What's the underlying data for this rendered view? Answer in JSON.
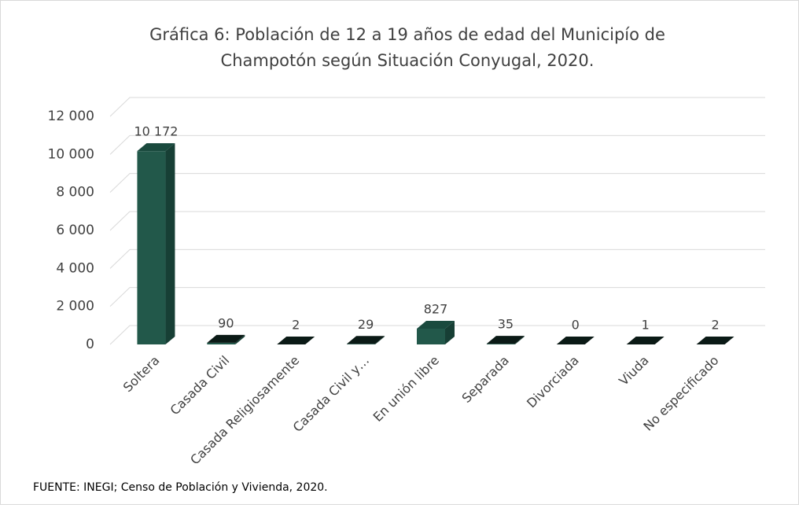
{
  "chart_data": {
    "type": "bar",
    "title": "Gráfica 6: Población de 12 a 19 años de edad del Municipío de",
    "subtitle": "Champotón según Situación Conyugal, 2020.",
    "categories": [
      "Soltera",
      "Casada Civil",
      "Casada Religiosamente",
      "Casada Civil y…",
      "En unión libre",
      "Separada",
      "Divorciada",
      "Viuda",
      "No especificado"
    ],
    "values": [
      10172,
      90,
      2,
      29,
      827,
      35,
      0,
      1,
      2
    ],
    "value_labels": [
      "10 172",
      "90",
      "2",
      "29",
      "827",
      "35",
      "0",
      "1",
      "2"
    ],
    "color": "#22584a",
    "ylim": [
      0,
      12000
    ],
    "yticks": [
      {
        "value": 0,
        "label": "0"
      },
      {
        "value": 2000,
        "label": "2 000"
      },
      {
        "value": 4000,
        "label": "4 000"
      },
      {
        "value": 6000,
        "label": "6 000"
      },
      {
        "value": 8000,
        "label": "8 000"
      },
      {
        "value": 10000,
        "label": "10 000"
      },
      {
        "value": 12000,
        "label": "12 000"
      }
    ],
    "grid": true,
    "source": "FUENTE: INEGI; Censo de Población y Vivienda, 2020."
  }
}
